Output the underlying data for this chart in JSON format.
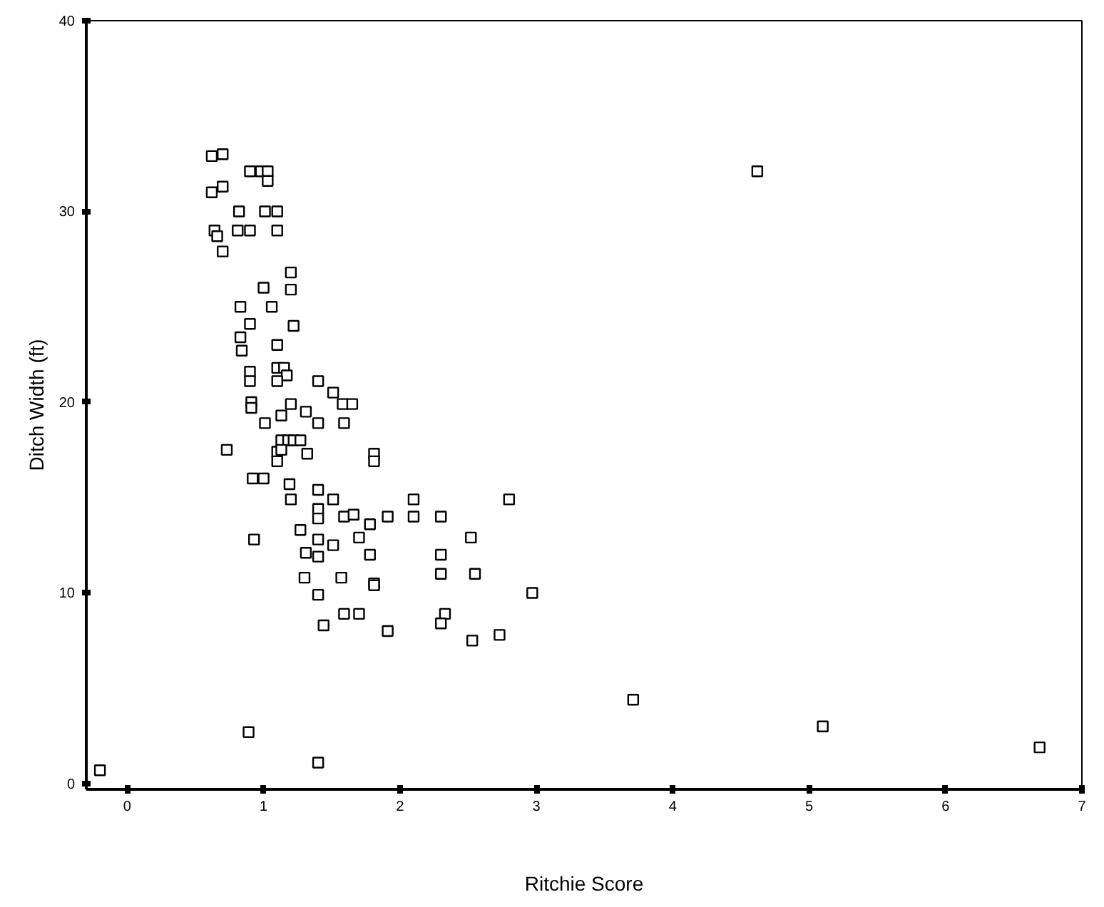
{
  "chart_data": {
    "type": "scatter",
    "xlabel": "Ritchie Score",
    "ylabel": "Ditch Width (ft)",
    "xlim": [
      -0.3,
      7
    ],
    "ylim": [
      -0.3,
      40
    ],
    "xticks": [
      0,
      1,
      2,
      3,
      4,
      5,
      6,
      7
    ],
    "yticks": [
      0,
      10,
      20,
      30,
      40
    ],
    "grid": false,
    "marker": "square",
    "series": [
      {
        "color": "#000000",
        "x": [
          0.62,
          0.7,
          0.62,
          0.7,
          0.9,
          0.98,
          1.03,
          1.03,
          0.82,
          1.01,
          1.1,
          0.64,
          0.66,
          0.7,
          0.81,
          0.9,
          1.1,
          1.2,
          1.2,
          1.0,
          0.83,
          1.06,
          0.9,
          1.22,
          0.83,
          0.84,
          1.1,
          0.9,
          0.9,
          1.1,
          1.15,
          1.17,
          1.1,
          1.4,
          1.51,
          1.58,
          1.65,
          0.91,
          0.91,
          1.2,
          1.01,
          1.13,
          1.31,
          1.4,
          1.59,
          1.13,
          1.18,
          1.22,
          1.27,
          0.73,
          1.1,
          1.13,
          1.32,
          1.81,
          1.81,
          1.1,
          0.92,
          1.0,
          1.19,
          1.4,
          1.2,
          1.51,
          2.1,
          2.8,
          1.4,
          1.4,
          1.59,
          1.66,
          1.91,
          2.1,
          2.3,
          1.27,
          1.78,
          1.7,
          1.4,
          1.51,
          0.93,
          1.31,
          1.4,
          1.78,
          2.3,
          2.52,
          1.3,
          1.57,
          1.81,
          1.81,
          2.3,
          2.55,
          2.97,
          1.4,
          1.59,
          1.7,
          2.33,
          1.44,
          2.3,
          1.91,
          2.53,
          2.73,
          3.71,
          4.62,
          0.89,
          1.4,
          5.1,
          6.69,
          -0.2
        ],
        "values": [
          32.9,
          33.0,
          31.0,
          31.3,
          32.1,
          32.1,
          32.1,
          31.6,
          30.0,
          30.0,
          30.0,
          29.0,
          28.7,
          27.9,
          29.0,
          29.0,
          29.0,
          26.8,
          25.9,
          26.0,
          25.0,
          25.0,
          24.1,
          24.0,
          23.4,
          22.7,
          23.0,
          21.6,
          21.1,
          21.8,
          21.8,
          21.4,
          21.1,
          21.1,
          20.5,
          19.9,
          19.9,
          20.0,
          19.7,
          19.9,
          18.9,
          19.3,
          19.5,
          18.9,
          18.9,
          18.0,
          18.0,
          18.0,
          18.0,
          17.5,
          17.4,
          17.5,
          17.3,
          17.3,
          16.9,
          16.9,
          16.0,
          16.0,
          15.7,
          15.4,
          14.9,
          14.9,
          14.9,
          14.9,
          14.4,
          13.9,
          14.0,
          14.1,
          14.0,
          14.0,
          14.0,
          13.3,
          13.6,
          12.9,
          12.8,
          12.5,
          12.8,
          12.1,
          11.9,
          12.0,
          12.0,
          12.9,
          10.8,
          10.8,
          10.5,
          10.4,
          11.0,
          11.0,
          10.0,
          9.9,
          8.9,
          8.9,
          8.9,
          8.3,
          8.4,
          8.0,
          7.5,
          7.8,
          4.4,
          32.1,
          2.7,
          1.1,
          3.0,
          1.9,
          0.7
        ]
      }
    ]
  }
}
